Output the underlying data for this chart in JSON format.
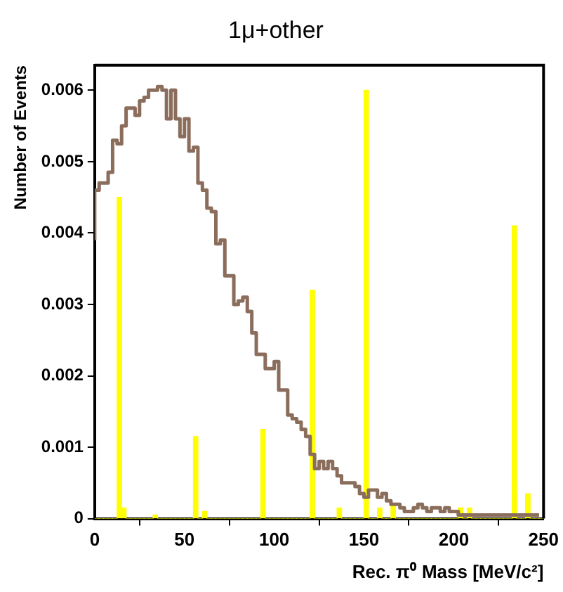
{
  "chart_data": {
    "type": "histogram",
    "title": "1μ+other",
    "xlabel": "Rec. π⁰ Mass [MeV/c²]",
    "ylabel": "Number of Events",
    "bins": [
      0,
      2.5,
      5,
      7.5,
      10,
      12.5,
      15,
      17.5,
      20,
      22.5,
      25,
      27.5,
      30,
      32.5,
      35,
      37.5,
      40,
      42.5,
      45,
      47.5,
      50,
      52.5,
      55,
      57.5,
      60,
      62.5,
      65,
      67.5,
      70,
      72.5,
      75,
      77.5,
      80,
      82.5,
      85,
      87.5,
      90,
      92.5,
      95,
      97.5,
      100,
      102.5,
      105,
      107.5,
      110,
      112.5,
      115,
      117.5,
      120,
      122.5,
      125,
      127.5,
      130,
      132.5,
      135,
      137.5,
      140,
      142.5,
      145,
      147.5,
      150,
      152.5,
      155,
      157.5,
      160,
      162.5,
      165,
      167.5,
      170,
      172.5,
      175,
      177.5,
      180,
      182.5,
      185,
      187.5,
      190,
      192.5,
      195,
      197.5,
      200,
      202.5,
      205,
      207.5,
      210,
      212.5,
      215,
      217.5,
      220,
      222.5,
      225,
      227.5,
      230,
      232.5,
      235,
      237.5,
      240,
      242.5,
      245,
      247.5,
      250
    ],
    "series": [
      {
        "color": "#ffff00",
        "values": [
          0,
          0,
          0,
          0,
          0,
          0.0045,
          0.00015,
          0,
          0,
          0,
          0,
          0,
          0,
          5e-05,
          0,
          0,
          0,
          0,
          0,
          0,
          0,
          0,
          0.00115,
          0,
          0.0001,
          0,
          0,
          0,
          0,
          0,
          0,
          0,
          0,
          0,
          0,
          0,
          0,
          0.00125,
          0,
          0,
          0,
          0,
          0,
          0,
          0,
          0,
          0,
          0,
          0.0032,
          0,
          0,
          0,
          0,
          0,
          0.00015,
          0,
          0,
          0,
          0,
          0,
          0.006,
          0,
          0,
          0.00015,
          0,
          0,
          0.0002,
          0,
          0,
          0,
          0,
          0,
          0,
          0,
          0,
          0,
          0,
          0,
          0,
          0,
          0,
          0.00015,
          0,
          0.00015,
          0,
          0,
          0,
          0,
          0,
          0,
          0,
          0,
          0,
          0.0041,
          0,
          0,
          0.00035,
          0,
          0,
          0
        ]
      },
      {
        "type": "step",
        "color": "#8b6d5c",
        "x": [
          0,
          2.5,
          5,
          7.5,
          10,
          12.5,
          15,
          17.5,
          20,
          22.5,
          25,
          27.5,
          30,
          32.5,
          35,
          37.5,
          40,
          42.5,
          45,
          47.5,
          50,
          52.5,
          55,
          57.5,
          60,
          62.5,
          65,
          67.5,
          70,
          72.5,
          75,
          77.5,
          80,
          82.5,
          85,
          87.5,
          90,
          92.5,
          95,
          97.5,
          100,
          102.5,
          105,
          107.5,
          110,
          112.5,
          115,
          117.5,
          120,
          122.5,
          125,
          127.5,
          130,
          132.5,
          135,
          137.5,
          140,
          142.5,
          145,
          147.5,
          150,
          152.5,
          155,
          157.5,
          160,
          162.5,
          165,
          167.5,
          170,
          172.5,
          175,
          177.5,
          180,
          182.5,
          185,
          187.5,
          190,
          192.5,
          195,
          197.5,
          200,
          202.5,
          205,
          207.5,
          210,
          212.5,
          215,
          217.5,
          220,
          222.5,
          225,
          227.5,
          230,
          232.5,
          235,
          237.5,
          240,
          242.5,
          245,
          247.5
        ],
        "values": [
          0.0039,
          0.0046,
          0.0047,
          0.0047,
          0.00485,
          0.0053,
          0.00525,
          0.0055,
          0.00575,
          0.00575,
          0.00565,
          0.00585,
          0.0059,
          0.006,
          0.006,
          0.00605,
          0.006,
          0.0056,
          0.006,
          0.0056,
          0.00535,
          0.0056,
          0.00515,
          0.0052,
          0.0047,
          0.0046,
          0.00435,
          0.0043,
          0.00385,
          0.0039,
          0.0034,
          0.0034,
          0.003,
          0.00305,
          0.0031,
          0.0029,
          0.0026,
          0.0023,
          0.0023,
          0.0021,
          0.0021,
          0.0022,
          0.0018,
          0.0018,
          0.00145,
          0.0014,
          0.00135,
          0.00125,
          0.00115,
          0.0009,
          0.0007,
          0.0008,
          0.0007,
          0.0008,
          0.0007,
          0.0006,
          0.0005,
          0.0005,
          0.0005,
          0.00045,
          0.00035,
          0.0003,
          0.0004,
          0.0004,
          0.0003,
          0.00035,
          0.00025,
          0.0002,
          0.0002,
          0.00015,
          0.0001,
          0.0001,
          0.00015,
          0.0002,
          0.00015,
          0.0001,
          0.00015,
          0.00015,
          0.0001,
          0.00015,
          0.0001,
          0.0001,
          5e-05,
          5e-05,
          5e-05,
          5e-05,
          5e-05,
          5e-05,
          5e-05,
          5e-05,
          5e-05,
          5e-05,
          5e-05,
          5e-05,
          5e-05,
          5e-05,
          5e-05,
          5e-05,
          5e-05,
          5e-05
        ]
      }
    ],
    "xlim": [
      0,
      250
    ],
    "xticks": [
      0,
      50,
      100,
      150,
      200,
      250
    ],
    "ylim": [
      0,
      0.00635
    ],
    "yticks": [
      0,
      0.001,
      0.002,
      0.003,
      0.004,
      0.005,
      0.006
    ]
  }
}
